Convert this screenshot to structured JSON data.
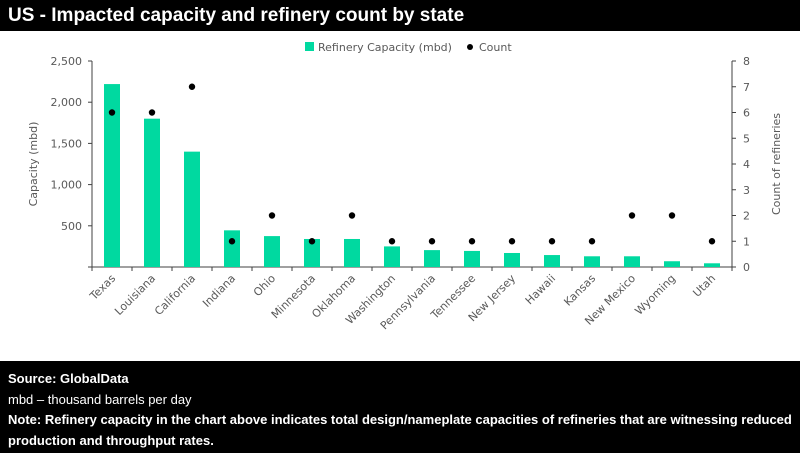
{
  "title": "US - Impacted capacity and refinery count by state",
  "chart_data": {
    "type": "bar+scatter",
    "categories": [
      "Texas",
      "Louisiana",
      "California",
      "Indiana",
      "Ohio",
      "Minnesota",
      "Oklahoma",
      "Washington",
      "Pennsylvania",
      "Tennessee",
      "New Jersey",
      "Hawaii",
      "Kansas",
      "New Mexico",
      "Wyoming",
      "Utah"
    ],
    "series": [
      {
        "name": "Refinery Capacity (mbd)",
        "type": "bar",
        "axis": "left",
        "color": "#00d9a0",
        "values": [
          2220,
          1800,
          1400,
          445,
          375,
          340,
          340,
          250,
          205,
          195,
          170,
          145,
          130,
          130,
          70,
          45
        ]
      },
      {
        "name": "Count",
        "type": "scatter",
        "axis": "right",
        "color": "#000000",
        "values": [
          6,
          6,
          7,
          1,
          2,
          1,
          2,
          1,
          1,
          1,
          1,
          1,
          1,
          2,
          2,
          1
        ]
      }
    ],
    "ylabel": "Capacity (mbd)",
    "ylabel_right": "Count of refineries",
    "ylim": [
      0,
      2500
    ],
    "yticks": [
      "500",
      "1,000",
      "1,500",
      "2,000",
      "2,500"
    ],
    "ylim_right": [
      0,
      8
    ],
    "yticks_right": [
      "0",
      "1",
      "2",
      "3",
      "4",
      "5",
      "6",
      "7",
      "8"
    ],
    "legend_position": "top-center",
    "grid": false
  },
  "footer": {
    "source": "Source: GlobalData",
    "unit_note": "mbd – thousand barrels per day",
    "note": "Note: Refinery capacity in the chart above indicates total design/nameplate capacities of refineries that are witnessing reduced production and throughput rates."
  }
}
